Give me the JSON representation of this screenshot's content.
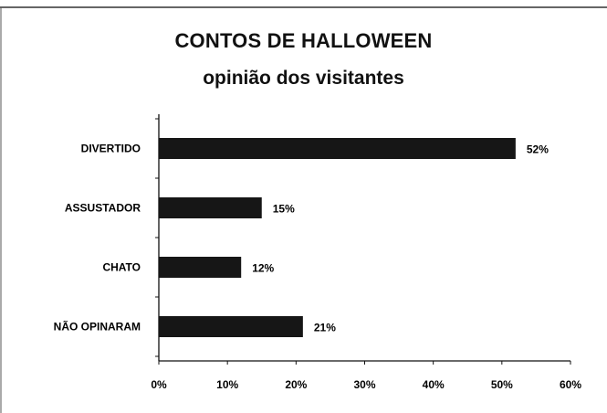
{
  "chart_data": {
    "type": "bar",
    "orientation": "horizontal",
    "title": "CONTOS DE HALLOWEEN",
    "subtitle": "opinião dos visitantes",
    "categories": [
      "DIVERTIDO",
      "ASSUSTADOR",
      "CHATO",
      "NÃO OPINARAM"
    ],
    "values": [
      52,
      15,
      12,
      21
    ],
    "value_labels": [
      "52%",
      "15%",
      "12%",
      "21%"
    ],
    "x_ticks": [
      "0%",
      "10%",
      "20%",
      "30%",
      "40%",
      "50%",
      "60%"
    ],
    "xlim": [
      0,
      60
    ],
    "grid": false,
    "bar_color": "#161616"
  }
}
